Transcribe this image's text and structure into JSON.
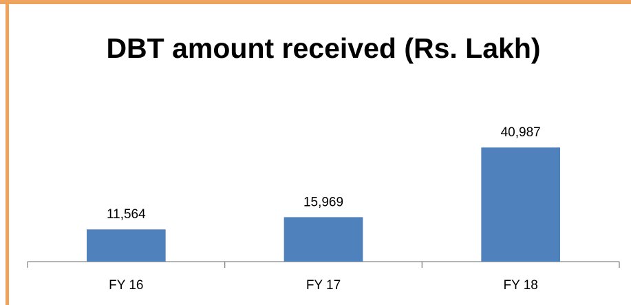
{
  "chart_data": {
    "type": "bar",
    "title": "DBT amount received (Rs. Lakh)",
    "categories": [
      "FY 16",
      "FY 17",
      "FY 18"
    ],
    "values": [
      11564,
      15969,
      40987
    ],
    "value_labels": [
      "11,564",
      "15,969",
      "40,987"
    ],
    "color": "#4f81bd",
    "ylim": [
      0,
      45000
    ]
  }
}
